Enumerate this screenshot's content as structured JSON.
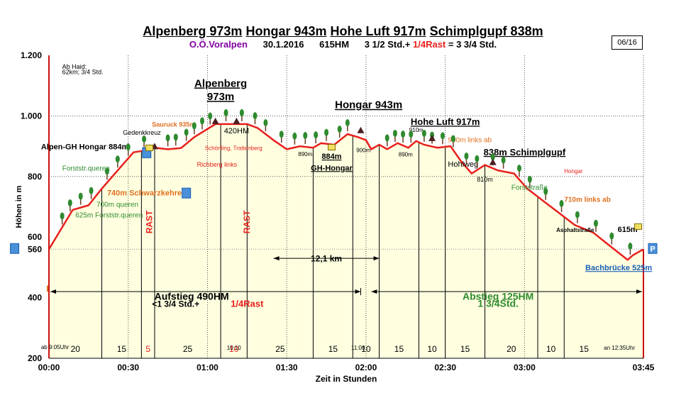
{
  "header": {
    "peaks": [
      "Alpenberg 973m",
      "Hongar 943m",
      "Hohe Luft 917m",
      "Schimplgupf 838m"
    ],
    "region": "O.Ö.Voralpen",
    "date": "30.1.2016",
    "hm": "615HM",
    "duration_a": "3 1/2 Std.+",
    "duration_rast": "1/4Rast",
    "duration_b": "= 3 3/4 Std.",
    "tour_no": "06/16"
  },
  "colors": {
    "fill": "#ffffe0",
    "line": "#e8201c",
    "axis": "#cc1010",
    "green": "#2e8b2e",
    "orange": "#e07020",
    "blue": "#1a5fb4"
  },
  "chart_data": {
    "type": "area",
    "title": "Alpenberg 973m Hongar 943m Hohe Luft 917m Schimplgupf 838m",
    "xlabel": "Zeit in Stunden",
    "ylabel": "Höhen in m",
    "xlim": [
      0,
      225
    ],
    "ylim": [
      200,
      1200
    ],
    "x_ticks": [
      {
        "m": 0,
        "label": "00:00"
      },
      {
        "m": 30,
        "label": "00:30"
      },
      {
        "m": 60,
        "label": "01:00"
      },
      {
        "m": 90,
        "label": "01:30"
      },
      {
        "m": 120,
        "label": "02:00"
      },
      {
        "m": 150,
        "label": "02:30"
      },
      {
        "m": 180,
        "label": "03:00"
      },
      {
        "m": 225,
        "label": "03:45"
      }
    ],
    "y_ticks": [
      {
        "v": 1200,
        "label": "1.200"
      },
      {
        "v": 1000,
        "label": "1.000"
      },
      {
        "v": 800,
        "label": "800"
      },
      {
        "v": 600,
        "label": "600"
      },
      {
        "v": 560,
        "label": "560"
      },
      {
        "v": 400,
        "label": "400"
      },
      {
        "v": 200,
        "label": "200"
      }
    ],
    "series": [
      {
        "x": [
          0,
          9,
          13,
          15,
          20,
          24,
          28,
          32,
          35,
          40,
          45,
          50,
          55,
          63,
          70,
          75,
          79,
          85,
          90,
          95,
          100,
          103,
          108,
          113,
          117,
          120,
          122,
          125,
          128,
          132,
          136,
          139,
          142,
          147,
          152,
          156,
          160,
          165,
          170,
          176,
          181,
          187,
          193,
          199,
          206,
          211,
          219,
          221,
          225
        ],
        "y": [
          560,
          690,
          700,
          705,
          760,
          800,
          840,
          880,
          884,
          895,
          890,
          894,
          930,
          973,
          973,
          973,
          960,
          920,
          890,
          900,
          895,
          910,
          905,
          940,
          930,
          920,
          890,
          905,
          890,
          910,
          895,
          917,
          905,
          895,
          900,
          850,
          810,
          838,
          820,
          810,
          760,
          720,
          680,
          640,
          615,
          580,
          525,
          540,
          560
        ]
      }
    ],
    "segments": [
      {
        "from": 0,
        "to": 20,
        "label": "20",
        "rest": false
      },
      {
        "from": 20,
        "to": 35,
        "label": "15",
        "rest": false
      },
      {
        "from": 35,
        "to": 40,
        "label": "5",
        "rest": true
      },
      {
        "from": 40,
        "to": 65,
        "label": "25",
        "rest": false
      },
      {
        "from": 65,
        "to": 75,
        "label": "10",
        "rest": true
      },
      {
        "from": 75,
        "to": 100,
        "label": "25",
        "rest": false
      },
      {
        "from": 100,
        "to": 115,
        "label": "15",
        "rest": false
      },
      {
        "from": 115,
        "to": 125,
        "label": "10",
        "rest": false
      },
      {
        "from": 125,
        "to": 140,
        "label": "15",
        "rest": false
      },
      {
        "from": 140,
        "to": 150,
        "label": "10",
        "rest": false
      },
      {
        "from": 150,
        "to": 165,
        "label": "15",
        "rest": false
      },
      {
        "from": 165,
        "to": 185,
        "label": "20",
        "rest": false
      },
      {
        "from": 185,
        "to": 195,
        "label": "10",
        "rest": false
      },
      {
        "from": 195,
        "to": 210,
        "label": "15",
        "rest": false
      }
    ],
    "annotations": [
      {
        "x": 5,
        "y": 1155,
        "text": "Ab Haid:",
        "color": "#000",
        "size": 9,
        "anchor": "start"
      },
      {
        "x": 5,
        "y": 1138,
        "text": "62km;  3/4 Std.",
        "color": "#000",
        "size": 9,
        "anchor": "start"
      },
      {
        "x": -3,
        "y": 230,
        "text": "ab 9:05Uhr",
        "color": "#000",
        "size": 8,
        "anchor": "start"
      },
      {
        "x": 65,
        "y": 1096,
        "text": "Alpenberg",
        "color": "#000",
        "size": 15,
        "bold": true,
        "underline": true,
        "anchor": "middle"
      },
      {
        "x": 65,
        "y": 1052,
        "text": "973m",
        "color": "#000",
        "size": 15,
        "bold": true,
        "underline": true,
        "anchor": "middle"
      },
      {
        "x": 121,
        "y": 1025,
        "text": "Hongar 943m",
        "color": "#000",
        "size": 15,
        "bold": true,
        "underline": true,
        "anchor": "middle"
      },
      {
        "x": 150,
        "y": 970,
        "text": "Hohe Luft 917m",
        "color": "#000",
        "size": 13,
        "bold": true,
        "underline": true,
        "anchor": "middle"
      },
      {
        "x": 180,
        "y": 870,
        "text": "838m  Schimplgupf",
        "color": "#000",
        "size": 13,
        "bold": true,
        "underline": true,
        "anchor": "middle"
      },
      {
        "x": 28,
        "y": 938,
        "text": "Gedenkkreuz",
        "color": "#000",
        "size": 9,
        "anchor": "start"
      },
      {
        "x": -3,
        "y": 890,
        "text": "Alpen-GH Hongar 884m",
        "color": "#000",
        "size": 11,
        "bold": true,
        "anchor": "start"
      },
      {
        "x": 39,
        "y": 965,
        "text": "Sauruck 935m",
        "color": "#e07020",
        "size": 9,
        "bold": true,
        "anchor": "start"
      },
      {
        "x": 59,
        "y": 887,
        "text": "Schörfling, Trattenberg",
        "color": "#e8201c",
        "size": 8,
        "anchor": "start"
      },
      {
        "x": 56,
        "y": 832,
        "text": "Richberg links",
        "color": "#e8201c",
        "size": 9,
        "anchor": "start"
      },
      {
        "x": 71,
        "y": 942,
        "text": "420HM",
        "color": "#000",
        "size": 11,
        "anchor": "middle"
      },
      {
        "x": 97,
        "y": 868,
        "text": "890m",
        "color": "#000",
        "size": 8,
        "anchor": "middle"
      },
      {
        "x": 107,
        "y": 858,
        "text": "884m",
        "color": "#000",
        "size": 11,
        "bold": true,
        "underline": true,
        "anchor": "middle"
      },
      {
        "x": 107,
        "y": 820,
        "text": "GH-Hongar",
        "color": "#000",
        "size": 11,
        "bold": true,
        "underline": true,
        "anchor": "middle"
      },
      {
        "x": 119,
        "y": 880,
        "text": "900m",
        "color": "#000",
        "size": 8,
        "anchor": "middle"
      },
      {
        "x": 139,
        "y": 947,
        "text": "910m",
        "color": "#000",
        "size": 8,
        "anchor": "middle"
      },
      {
        "x": 135,
        "y": 866,
        "text": "890m",
        "color": "#000",
        "size": 8,
        "anchor": "middle"
      },
      {
        "x": 151,
        "y": 913,
        "text": "900m links ab",
        "color": "#e07020",
        "size": 10,
        "anchor": "start"
      },
      {
        "x": 151,
        "y": 832,
        "text": "Hohlweg",
        "color": "#000",
        "size": 11,
        "anchor": "start"
      },
      {
        "x": 165,
        "y": 783,
        "text": "810m",
        "color": "#000",
        "size": 9,
        "anchor": "middle"
      },
      {
        "x": 195,
        "y": 811,
        "text": "Hongar",
        "color": "#e8201c",
        "size": 8,
        "anchor": "start"
      },
      {
        "x": 175,
        "y": 756,
        "text": "Forststraße",
        "color": "#2e8b2e",
        "size": 10,
        "anchor": "start"
      },
      {
        "x": 195,
        "y": 716,
        "text": "710m links ab",
        "color": "#e07020",
        "size": 10,
        "bold": true,
        "anchor": "start"
      },
      {
        "x": 192,
        "y": 617,
        "text": "Asphaltstraße",
        "color": "#000",
        "size": 8,
        "bold": true,
        "anchor": "start"
      },
      {
        "x": 219,
        "y": 617,
        "text": "615m",
        "color": "#000",
        "size": 11,
        "bold": true,
        "anchor": "middle"
      },
      {
        "x": 203,
        "y": 490,
        "text": "Bachbrücke 525m",
        "color": "#1a5fb4",
        "size": 11,
        "bold": true,
        "underline": true,
        "anchor": "start"
      },
      {
        "x": 5,
        "y": 820,
        "text": "Forststr.queren",
        "color": "#2e8b2e",
        "size": 10,
        "anchor": "start"
      },
      {
        "x": 22,
        "y": 738,
        "text": "740m Schwarzkehre",
        "color": "#e07020",
        "size": 11,
        "bold": true,
        "anchor": "start"
      },
      {
        "x": 18,
        "y": 700,
        "text": "700m queren",
        "color": "#2e8b2e",
        "size": 10,
        "anchor": "start"
      },
      {
        "x": 10,
        "y": 665,
        "text": "625m Forststr.queren",
        "color": "#2e8b2e",
        "size": 10,
        "anchor": "start"
      },
      {
        "x": 105,
        "y": 520,
        "text": "12,1 km",
        "color": "#000",
        "size": 12,
        "bold": true,
        "anchor": "middle"
      },
      {
        "x": 54,
        "y": 393,
        "text": "Aufstieg 490HM",
        "color": "#000",
        "size": 14,
        "bold": true,
        "anchor": "middle"
      },
      {
        "x": 48,
        "y": 370,
        "text": "<1 3/4 Std.+",
        "color": "#000",
        "size": 12,
        "bold": true,
        "anchor": "middle"
      },
      {
        "x": 75,
        "y": 370,
        "text": "1/4Rast",
        "color": "#e8201c",
        "size": 13,
        "bold": true,
        "anchor": "middle"
      },
      {
        "x": 170,
        "y": 393,
        "text": "Abstieg 125HM",
        "color": "#2e8b2e",
        "size": 14,
        "bold": true,
        "anchor": "middle"
      },
      {
        "x": 170,
        "y": 370,
        "text": "1 3/4Std.",
        "color": "#2e8b2e",
        "size": 14,
        "bold": true,
        "anchor": "middle"
      },
      {
        "x": 210,
        "y": 228,
        "text": "an 12:35Uhr",
        "color": "#000",
        "size": 8,
        "anchor": "start"
      },
      {
        "x": 70,
        "y": 228,
        "text": "10:10",
        "color": "#000",
        "size": 8,
        "anchor": "middle"
      },
      {
        "x": 117,
        "y": 228,
        "text": "11:00",
        "color": "#000",
        "size": 8,
        "anchor": "middle"
      }
    ],
    "vertical_labels": [
      {
        "x": 39,
        "y": 650,
        "text": "RAST",
        "color": "#e8201c"
      },
      {
        "x": 76,
        "y": 650,
        "text": "RAST",
        "color": "#e8201c"
      }
    ]
  }
}
